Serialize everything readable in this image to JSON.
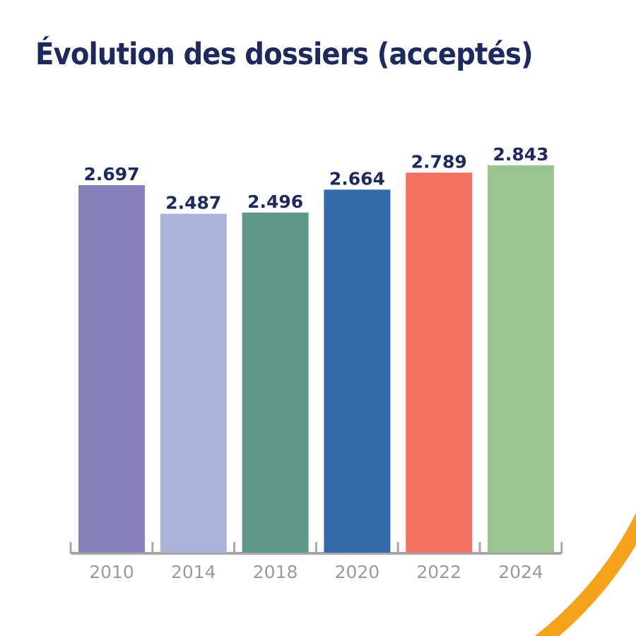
{
  "chart_data": {
    "type": "bar",
    "title": "Évolution des dossiers (acceptés)",
    "categories": [
      "2010",
      "2014",
      "2018",
      "2020",
      "2022",
      "2024"
    ],
    "values": [
      2697,
      2487,
      2496,
      2664,
      2789,
      2843
    ],
    "value_labels": [
      "2.697",
      "2.487",
      "2.496",
      "2.664",
      "2.789",
      "2.843"
    ],
    "colors": [
      "#8880bb",
      "#aab3d8",
      "#5f9888",
      "#346aa9",
      "#f37262",
      "#9bc491"
    ],
    "ylim": [
      0,
      2843
    ],
    "grid": false,
    "legend": "none",
    "xlabel": "",
    "ylabel": ""
  },
  "colors": {
    "title": "#1f2a5c",
    "axis": "#a6a6a6",
    "decor_arc": "#f6a31c"
  }
}
